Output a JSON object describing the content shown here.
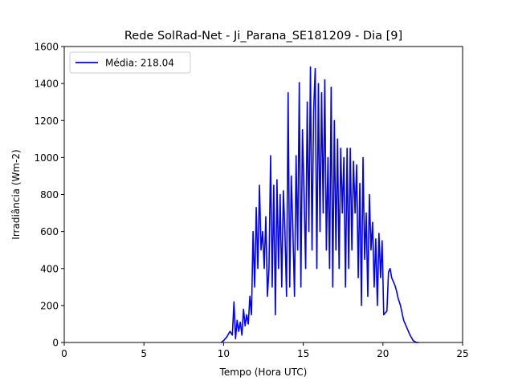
{
  "chart_data": {
    "type": "line",
    "title": "Rede SolRad-Net - Ji_Parana_SE181209 - Dia [9]",
    "xlabel": "Tempo (Hora UTC)",
    "ylabel": "Irradiância (Wm-2)",
    "xlim": [
      0,
      25
    ],
    "ylim": [
      0,
      1600
    ],
    "xticks": [
      0,
      5,
      10,
      15,
      20,
      25
    ],
    "yticks": [
      0,
      200,
      400,
      600,
      800,
      1000,
      1200,
      1400,
      1600
    ],
    "grid": false,
    "legend_position": "top-left",
    "series": [
      {
        "name": "Média: 218.04",
        "color": "#0000ff",
        "x": [
          9.85,
          10.0,
          10.2,
          10.4,
          10.55,
          10.65,
          10.75,
          10.85,
          10.95,
          11.05,
          11.15,
          11.25,
          11.35,
          11.45,
          11.55,
          11.65,
          11.75,
          11.85,
          11.95,
          12.05,
          12.15,
          12.25,
          12.35,
          12.45,
          12.55,
          12.65,
          12.75,
          12.85,
          12.95,
          13.05,
          13.15,
          13.25,
          13.35,
          13.45,
          13.55,
          13.65,
          13.75,
          13.85,
          13.95,
          14.05,
          14.15,
          14.25,
          14.35,
          14.45,
          14.55,
          14.65,
          14.75,
          14.85,
          14.95,
          15.05,
          15.15,
          15.25,
          15.35,
          15.45,
          15.55,
          15.65,
          15.75,
          15.85,
          15.95,
          16.05,
          16.15,
          16.25,
          16.35,
          16.45,
          16.55,
          16.65,
          16.75,
          16.85,
          16.95,
          17.05,
          17.15,
          17.25,
          17.35,
          17.45,
          17.55,
          17.65,
          17.75,
          17.85,
          17.95,
          18.05,
          18.15,
          18.25,
          18.35,
          18.45,
          18.55,
          18.65,
          18.75,
          18.85,
          18.95,
          19.05,
          19.15,
          19.25,
          19.35,
          19.45,
          19.55,
          19.65,
          19.75,
          19.85,
          19.95,
          20.05,
          20.15,
          20.25,
          20.35,
          20.45,
          20.55,
          20.65,
          20.75,
          20.85,
          20.95,
          21.1,
          21.3,
          21.5,
          21.7,
          21.9,
          22.1,
          22.25
        ],
        "y": [
          0,
          10,
          30,
          60,
          40,
          220,
          20,
          120,
          60,
          110,
          40,
          180,
          90,
          150,
          100,
          250,
          150,
          600,
          300,
          730,
          400,
          850,
          500,
          600,
          400,
          680,
          250,
          400,
          1010,
          300,
          850,
          150,
          880,
          400,
          800,
          300,
          820,
          600,
          250,
          1350,
          300,
          900,
          600,
          250,
          1010,
          500,
          1405,
          300,
          1150,
          800,
          400,
          1300,
          600,
          1490,
          500,
          1250,
          1480,
          400,
          1400,
          600,
          1350,
          700,
          1420,
          500,
          1000,
          400,
          1380,
          300,
          1200,
          500,
          1100,
          400,
          1050,
          700,
          1000,
          300,
          1050,
          400,
          1050,
          500,
          980,
          700,
          960,
          350,
          860,
          200,
          1000,
          450,
          700,
          250,
          800,
          500,
          650,
          300,
          560,
          200,
          590,
          350,
          550,
          150,
          160,
          170,
          380,
          400,
          350,
          330,
          310,
          280,
          240,
          200,
          120,
          80,
          40,
          10,
          0,
          0
        ]
      }
    ]
  }
}
